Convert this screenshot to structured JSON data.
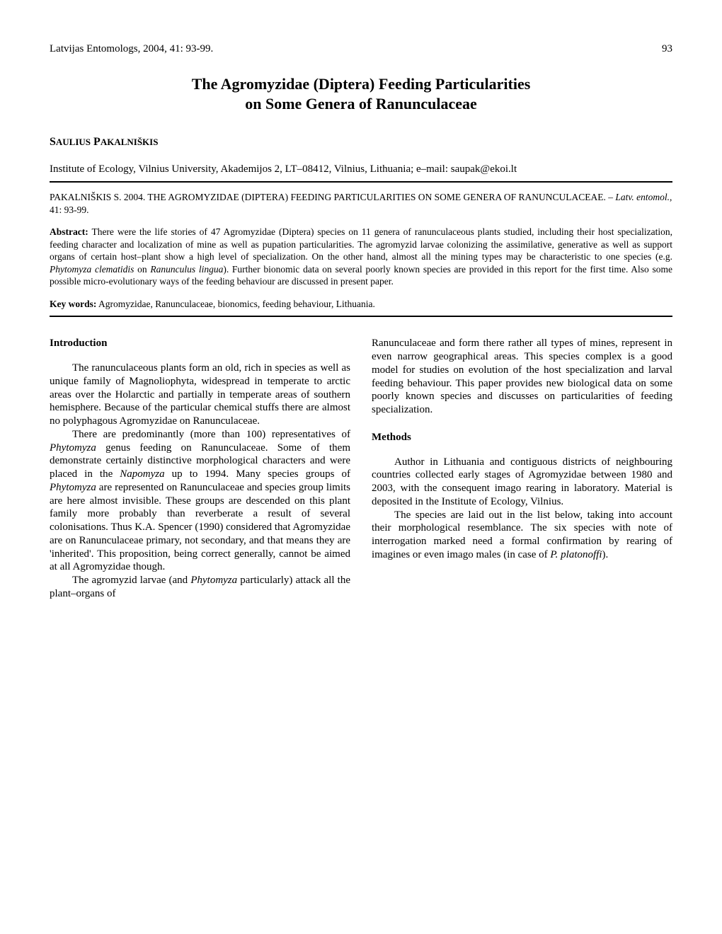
{
  "header": {
    "journal": "Latvijas Entomologs, 2004, 41: 93-99.",
    "page": "93"
  },
  "title_line1": "The Agromyzidae (Diptera) Feeding Particularities",
  "title_line2": "on Some Genera of Ranunculaceae",
  "author_first": "Saulius",
  "author_last": "Pakalniškis",
  "affiliation": "Institute of Ecology, Vilnius University, Akademijos 2, LT–08412, Vilnius, Lithuania; e–mail: saupak@ekoi.lt",
  "citation_part1": "PAKALNIŠKIS S. 2004. THE AGROMYZIDAE (DIPTERA) FEEDING PARTICULARITIES ON SOME GENERA OF RANUNCULACEAE. – ",
  "citation_italic": "Latv. entomol.",
  "citation_part2": ", 41: 93-99.",
  "abstract_label": "Abstract:",
  "abstract_part1": " There were the life stories of 47 Agromyzidae (Diptera) species on 11 genera of ranunculaceous plants studied, including their host specialization, feeding character and localization of mine as well as pupation particularities. The agromyzid larvae colonizing the assimilative, generative as well as support organs of certain host–plant show a high level of specialization. On the other hand, almost all the mining types may be characteristic to one species (e.g. ",
  "abstract_italic1": "Phytomyza clematidis",
  "abstract_part2": " on ",
  "abstract_italic2": "Ranunculus lingua",
  "abstract_part3": "). Further bionomic data on several poorly known species are provided in this report for the first time. Also some possible micro-evolutionary ways of the feeding behaviour are discussed in present paper.",
  "keywords_label": "Key words:",
  "keywords_text": " Agromyzidae, Ranunculaceae, bionomics, feeding behaviour, Lithuania.",
  "intro_heading": "Introduction",
  "intro_p1": "The ranunculaceous plants form an old, rich in species as well as unique family of Magnoliophyta, widespread in temperate to arctic areas over the Holarctic and partially in temperate areas of southern hemisphere. Because of the particular chemical stuffs there are almost no polyphagous Agromyzidae on Ranunculaceae.",
  "intro_p2_a": "There are predominantly (more than 100) representatives of ",
  "intro_p2_i1": "Phytomyza",
  "intro_p2_b": " genus feeding on Ranunculaceae. Some of them demonstrate certainly distinctive morphological characters and were placed in the ",
  "intro_p2_i2": "Napomyza",
  "intro_p2_c": " up to 1994. Many species groups of ",
  "intro_p2_i3": "Phytomyza",
  "intro_p2_d": " are represented on Ranunculaceae and species group limits are here almost invisible. These groups are descended on this plant family more probably than reverberate a result of several colonisations. Thus K.A. Spencer (1990) considered that Agromyzidae are on Ranunculaceae primary, not secondary, and that means they are 'inherited'. This proposition, being correct generally, cannot be aimed at all Agromyzidae though.",
  "intro_p3_a": "The agromyzid larvae (and ",
  "intro_p3_i1": "Phytomyza",
  "intro_p3_b": " particularly) attack all the plant–organs of",
  "col2_p1": "Ranunculaceae and form there rather all types of mines, represent in even narrow geographical areas. This species complex is a good model for studies on evolution of the host specialization and larval feeding behaviour. This paper provides new biological data on some poorly known species and discusses on particularities of feeding specialization.",
  "methods_heading": "Methods",
  "methods_p1": "Author in Lithuania and contiguous districts of neighbouring countries collected early stages of Agromyzidae between 1980 and 2003, with the consequent imago rearing in laboratory. Material is deposited in the Institute of Ecology, Vilnius.",
  "methods_p2_a": "The species are laid out in the list below, taking into account their morphological resemblance. The six species with note of interrogation marked need a formal confirmation by rearing of imagines or even imago males (in case of ",
  "methods_p2_i1": "P. platonoffi",
  "methods_p2_b": ")."
}
